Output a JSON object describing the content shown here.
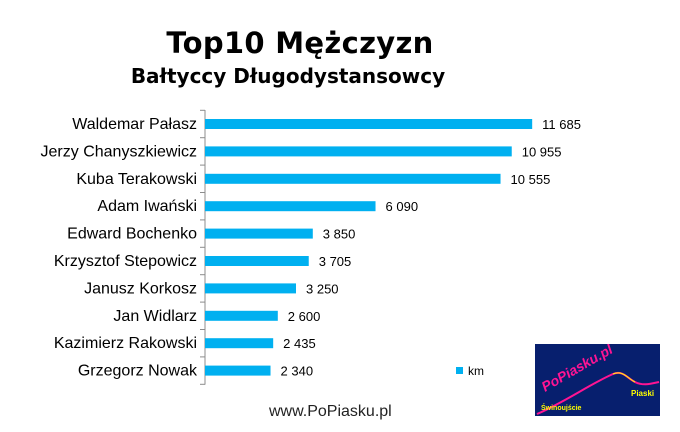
{
  "chart_data": {
    "type": "bar",
    "orientation": "horizontal",
    "title": "Top10 Mężczyzn",
    "subtitle": "Bałtyccy Długodystansowcy",
    "categories": [
      "Waldemar Pałasz",
      "Jerzy Chanyszkiewicz",
      "Kuba Terakowski",
      "Adam Iwański",
      "Edward Bochenko",
      "Krzysztof Stepowicz",
      "Janusz Korkosz",
      "Jan Widlarz",
      "Kazimierz Rakowski",
      "Grzegorz Nowak"
    ],
    "series": [
      {
        "name": "km",
        "values": [
          11685,
          10955,
          10555,
          6090,
          3850,
          3705,
          3250,
          2600,
          2435,
          2340
        ],
        "labels": [
          "11 685",
          "10 955",
          "10 555",
          "6 090",
          "3 850",
          "3 705",
          "3 250",
          "2 600",
          "2 435",
          "2 340"
        ],
        "color": "#00B0F0"
      }
    ],
    "xlim": [
      0,
      14000
    ],
    "legend_position": "bottom-right",
    "grid": false
  },
  "footer": "www.PoPiasku.pl",
  "logo": {
    "text": "PoPiasku.pl",
    "place_label": "Piaski",
    "city_label": "Świnoujście",
    "background": "#071F6E",
    "text_color": "#FF1493",
    "accent_color": "#FFFF00"
  }
}
